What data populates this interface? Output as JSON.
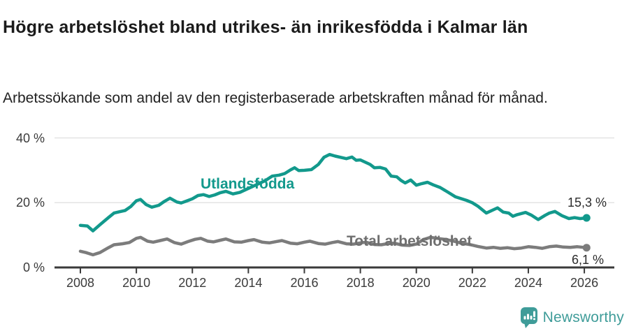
{
  "chart_data": {
    "type": "line",
    "title": "Högre arbetslöshet bland utrikes- än inrikesfödda i Kalmar län",
    "subtitle": "Arbetssökande som andel av den registerbaserade arbetskraften månad för månad.",
    "xlabel": "",
    "ylabel": "",
    "ylim": [
      0,
      40
    ],
    "x_ticks": [
      2008,
      2010,
      2012,
      2014,
      2016,
      2018,
      2020,
      2022,
      2024,
      2026
    ],
    "y_ticks": [
      {
        "value": 0,
        "label": "0 %"
      },
      {
        "value": 20,
        "label": "20 %"
      },
      {
        "value": 40,
        "label": "40 %"
      }
    ],
    "grid": "horizontal",
    "legend_position": "inline-labels",
    "series": [
      {
        "name": "Utlandsfödda",
        "color": "#12998c",
        "end_label": "15,3 %",
        "end_value": 15.3,
        "points": [
          [
            2008.0,
            13.0
          ],
          [
            2008.25,
            12.8
          ],
          [
            2008.45,
            11.3
          ],
          [
            2008.7,
            13.2
          ],
          [
            2009.0,
            15.4
          ],
          [
            2009.2,
            16.8
          ],
          [
            2009.4,
            17.2
          ],
          [
            2009.6,
            17.6
          ],
          [
            2009.8,
            18.8
          ],
          [
            2010.0,
            20.6
          ],
          [
            2010.15,
            21.0
          ],
          [
            2010.35,
            19.4
          ],
          [
            2010.55,
            18.6
          ],
          [
            2010.8,
            19.2
          ],
          [
            2011.0,
            20.4
          ],
          [
            2011.2,
            21.4
          ],
          [
            2011.45,
            20.2
          ],
          [
            2011.6,
            19.9
          ],
          [
            2011.85,
            20.7
          ],
          [
            2012.0,
            21.2
          ],
          [
            2012.2,
            22.2
          ],
          [
            2012.4,
            22.5
          ],
          [
            2012.6,
            21.9
          ],
          [
            2012.8,
            22.4
          ],
          [
            2013.0,
            23.1
          ],
          [
            2013.2,
            23.5
          ],
          [
            2013.45,
            22.7
          ],
          [
            2013.7,
            23.2
          ],
          [
            2014.0,
            24.4
          ],
          [
            2014.3,
            25.6
          ],
          [
            2014.6,
            26.8
          ],
          [
            2014.85,
            28.2
          ],
          [
            2015.1,
            28.5
          ],
          [
            2015.3,
            29.0
          ],
          [
            2015.5,
            30.1
          ],
          [
            2015.65,
            30.8
          ],
          [
            2015.8,
            29.9
          ],
          [
            2016.0,
            30.0
          ],
          [
            2016.25,
            30.2
          ],
          [
            2016.5,
            31.8
          ],
          [
            2016.7,
            34.0
          ],
          [
            2016.9,
            34.9
          ],
          [
            2017.1,
            34.4
          ],
          [
            2017.35,
            33.9
          ],
          [
            2017.5,
            33.6
          ],
          [
            2017.7,
            34.1
          ],
          [
            2017.85,
            33.1
          ],
          [
            2018.0,
            33.2
          ],
          [
            2018.1,
            32.8
          ],
          [
            2018.35,
            31.8
          ],
          [
            2018.5,
            30.8
          ],
          [
            2018.7,
            30.9
          ],
          [
            2018.9,
            30.4
          ],
          [
            2019.1,
            28.2
          ],
          [
            2019.3,
            28.0
          ],
          [
            2019.45,
            26.9
          ],
          [
            2019.6,
            26.1
          ],
          [
            2019.8,
            27.0
          ],
          [
            2020.0,
            25.4
          ],
          [
            2020.2,
            25.9
          ],
          [
            2020.4,
            26.3
          ],
          [
            2020.6,
            25.5
          ],
          [
            2020.85,
            24.7
          ],
          [
            2021.1,
            23.4
          ],
          [
            2021.4,
            21.8
          ],
          [
            2021.8,
            20.7
          ],
          [
            2022.0,
            20.0
          ],
          [
            2022.2,
            18.9
          ],
          [
            2022.5,
            16.8
          ],
          [
            2022.8,
            18.0
          ],
          [
            2022.9,
            18.4
          ],
          [
            2023.1,
            17.1
          ],
          [
            2023.3,
            16.8
          ],
          [
            2023.45,
            15.8
          ],
          [
            2023.6,
            16.3
          ],
          [
            2023.9,
            17.0
          ],
          [
            2024.1,
            16.2
          ],
          [
            2024.35,
            14.8
          ],
          [
            2024.6,
            16.1
          ],
          [
            2024.75,
            16.8
          ],
          [
            2024.95,
            17.3
          ],
          [
            2025.2,
            16.0
          ],
          [
            2025.45,
            15.1
          ],
          [
            2025.65,
            15.4
          ],
          [
            2025.85,
            15.1
          ],
          [
            2026.08,
            15.3
          ]
        ]
      },
      {
        "name": "Total arbetslöshet",
        "color": "#7c7c7c",
        "end_label": "6,1 %",
        "end_value": 6.1,
        "points": [
          [
            2008.0,
            5.0
          ],
          [
            2008.2,
            4.6
          ],
          [
            2008.45,
            3.9
          ],
          [
            2008.7,
            4.6
          ],
          [
            2009.0,
            6.1
          ],
          [
            2009.2,
            7.0
          ],
          [
            2009.5,
            7.3
          ],
          [
            2009.75,
            7.7
          ],
          [
            2010.0,
            9.0
          ],
          [
            2010.15,
            9.3
          ],
          [
            2010.4,
            8.1
          ],
          [
            2010.6,
            7.8
          ],
          [
            2010.85,
            8.3
          ],
          [
            2011.1,
            8.8
          ],
          [
            2011.35,
            7.7
          ],
          [
            2011.6,
            7.2
          ],
          [
            2011.85,
            8.0
          ],
          [
            2012.1,
            8.7
          ],
          [
            2012.3,
            9.0
          ],
          [
            2012.55,
            8.1
          ],
          [
            2012.75,
            7.9
          ],
          [
            2013.0,
            8.4
          ],
          [
            2013.2,
            8.8
          ],
          [
            2013.5,
            7.9
          ],
          [
            2013.75,
            7.8
          ],
          [
            2014.0,
            8.3
          ],
          [
            2014.2,
            8.6
          ],
          [
            2014.5,
            7.8
          ],
          [
            2014.75,
            7.6
          ],
          [
            2015.0,
            8.0
          ],
          [
            2015.2,
            8.3
          ],
          [
            2015.5,
            7.5
          ],
          [
            2015.75,
            7.3
          ],
          [
            2016.0,
            7.8
          ],
          [
            2016.2,
            8.1
          ],
          [
            2016.5,
            7.4
          ],
          [
            2016.75,
            7.2
          ],
          [
            2017.0,
            7.7
          ],
          [
            2017.2,
            8.0
          ],
          [
            2017.5,
            7.3
          ],
          [
            2017.75,
            7.2
          ],
          [
            2018.0,
            7.6
          ],
          [
            2018.2,
            7.8
          ],
          [
            2018.5,
            7.1
          ],
          [
            2018.75,
            7.0
          ],
          [
            2019.0,
            7.4
          ],
          [
            2019.2,
            7.5
          ],
          [
            2019.5,
            6.9
          ],
          [
            2019.75,
            6.8
          ],
          [
            2020.0,
            7.2
          ],
          [
            2020.25,
            8.6
          ],
          [
            2020.5,
            9.3
          ],
          [
            2020.75,
            9.0
          ],
          [
            2021.0,
            8.7
          ],
          [
            2021.3,
            8.2
          ],
          [
            2021.6,
            7.5
          ],
          [
            2021.9,
            7.1
          ],
          [
            2022.2,
            6.5
          ],
          [
            2022.5,
            6.0
          ],
          [
            2022.75,
            6.2
          ],
          [
            2023.0,
            5.9
          ],
          [
            2023.25,
            6.1
          ],
          [
            2023.5,
            5.8
          ],
          [
            2023.75,
            6.0
          ],
          [
            2024.0,
            6.4
          ],
          [
            2024.25,
            6.2
          ],
          [
            2024.5,
            5.9
          ],
          [
            2024.75,
            6.4
          ],
          [
            2025.0,
            6.6
          ],
          [
            2025.25,
            6.3
          ],
          [
            2025.5,
            6.2
          ],
          [
            2025.75,
            6.4
          ],
          [
            2026.08,
            6.1
          ]
        ]
      }
    ]
  },
  "branding": {
    "logo_text": "Newsworthy",
    "color": "#3f9c99"
  },
  "ui_colors": {
    "axis": "#3a3a3a",
    "gridline": "#e3e3e3",
    "tick_text": "#3b3b3b",
    "end_label_text": "#2b2b2b"
  }
}
